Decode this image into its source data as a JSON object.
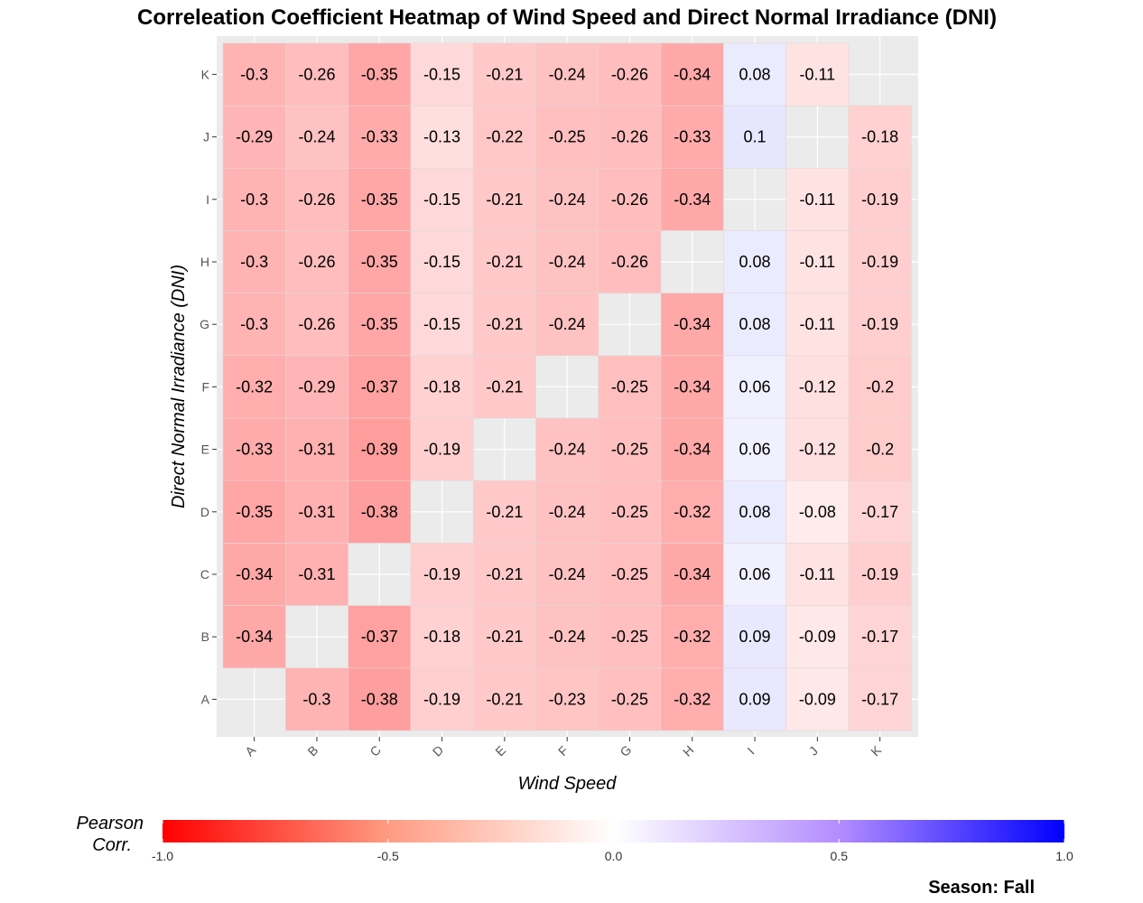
{
  "chart_data": {
    "type": "heatmap",
    "title": "Correleation Coefficient Heatmap of Wind Speed and Direct Normal Irradiance (DNI)",
    "xlabel": "Wind Speed",
    "ylabel": "Direct Normal Irradiance (DNI)",
    "x_categories": [
      "A",
      "B",
      "C",
      "D",
      "E",
      "F",
      "G",
      "H",
      "I",
      "J",
      "K"
    ],
    "y_categories": [
      "A",
      "B",
      "C",
      "D",
      "E",
      "F",
      "G",
      "H",
      "I",
      "J",
      "K"
    ],
    "values": [
      [
        null,
        -0.3,
        -0.38,
        -0.19,
        -0.21,
        -0.23,
        -0.25,
        -0.32,
        0.09,
        -0.09,
        -0.17
      ],
      [
        -0.34,
        null,
        -0.37,
        -0.18,
        -0.21,
        -0.24,
        -0.25,
        -0.32,
        0.09,
        -0.09,
        -0.17
      ],
      [
        -0.34,
        -0.31,
        null,
        -0.19,
        -0.21,
        -0.24,
        -0.25,
        -0.34,
        0.06,
        -0.11,
        -0.19
      ],
      [
        -0.35,
        -0.31,
        -0.38,
        null,
        -0.21,
        -0.24,
        -0.25,
        -0.32,
        0.08,
        -0.08,
        -0.17
      ],
      [
        -0.33,
        -0.31,
        -0.39,
        -0.19,
        null,
        -0.24,
        -0.25,
        -0.34,
        0.06,
        -0.12,
        -0.2
      ],
      [
        -0.32,
        -0.29,
        -0.37,
        -0.18,
        -0.21,
        null,
        -0.25,
        -0.34,
        0.06,
        -0.12,
        -0.2
      ],
      [
        -0.3,
        -0.26,
        -0.35,
        -0.15,
        -0.21,
        -0.24,
        null,
        -0.34,
        0.08,
        -0.11,
        -0.19
      ],
      [
        -0.3,
        -0.26,
        -0.35,
        -0.15,
        -0.21,
        -0.24,
        -0.26,
        null,
        0.08,
        -0.11,
        -0.19
      ],
      [
        -0.3,
        -0.26,
        -0.35,
        -0.15,
        -0.21,
        -0.24,
        -0.26,
        -0.34,
        null,
        -0.11,
        -0.19
      ],
      [
        -0.29,
        -0.24,
        -0.33,
        -0.13,
        -0.22,
        -0.25,
        -0.26,
        -0.33,
        0.1,
        null,
        -0.18
      ],
      [
        -0.3,
        -0.26,
        -0.35,
        -0.15,
        -0.21,
        -0.24,
        -0.26,
        -0.34,
        0.08,
        -0.11,
        null
      ]
    ],
    "color_scale": {
      "low": "#ff0000",
      "mid": "#ffffff",
      "high": "#0000ff",
      "limits": [
        -1.0,
        1.0
      ]
    },
    "legend": {
      "title_line1": "Pearson",
      "title_line2": "Corr.",
      "ticks": [
        -1.0,
        -0.5,
        0.0,
        0.5,
        1.0
      ],
      "tick_labels": [
        "-1.0",
        "-0.5",
        "0.0",
        "0.5",
        "1.0"
      ],
      "placement": "bottom"
    },
    "grid": true,
    "panel_background": "#ebebeb",
    "caption": "Season: Fall"
  }
}
